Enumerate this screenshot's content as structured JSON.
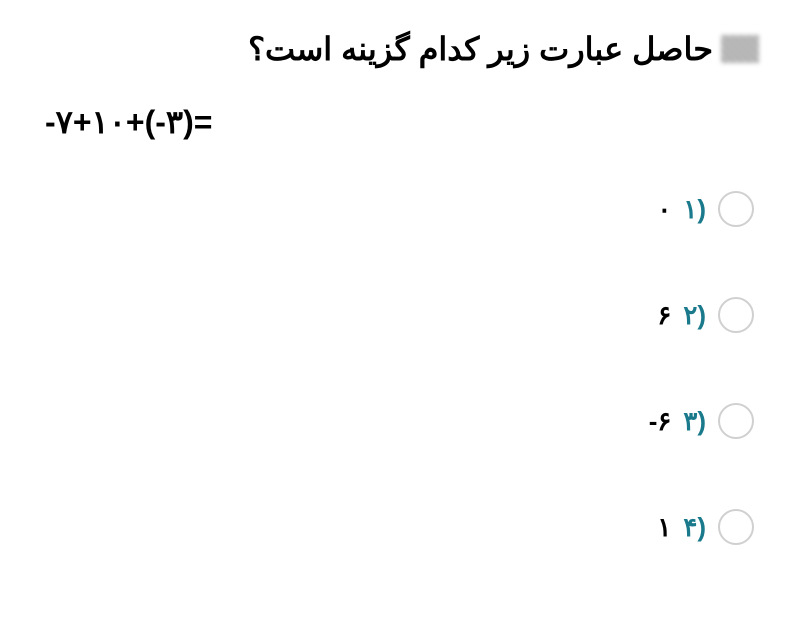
{
  "question": {
    "text": "حاصل عبارت زیر کدام گزینه است؟",
    "equation": "-۷+۱۰+(-۳)="
  },
  "options": [
    {
      "number": "۱)",
      "value": "۰"
    },
    {
      "number": "۲)",
      "value": "۶"
    },
    {
      "number": "۳)",
      "value": "-۶"
    },
    {
      "number": "۴)",
      "value": "۱"
    }
  ],
  "colors": {
    "option_number": "#1a7a8c",
    "option_value": "#000000",
    "question_text": "#000000",
    "radio_border": "#d0d0d0",
    "background": "#ffffff"
  }
}
